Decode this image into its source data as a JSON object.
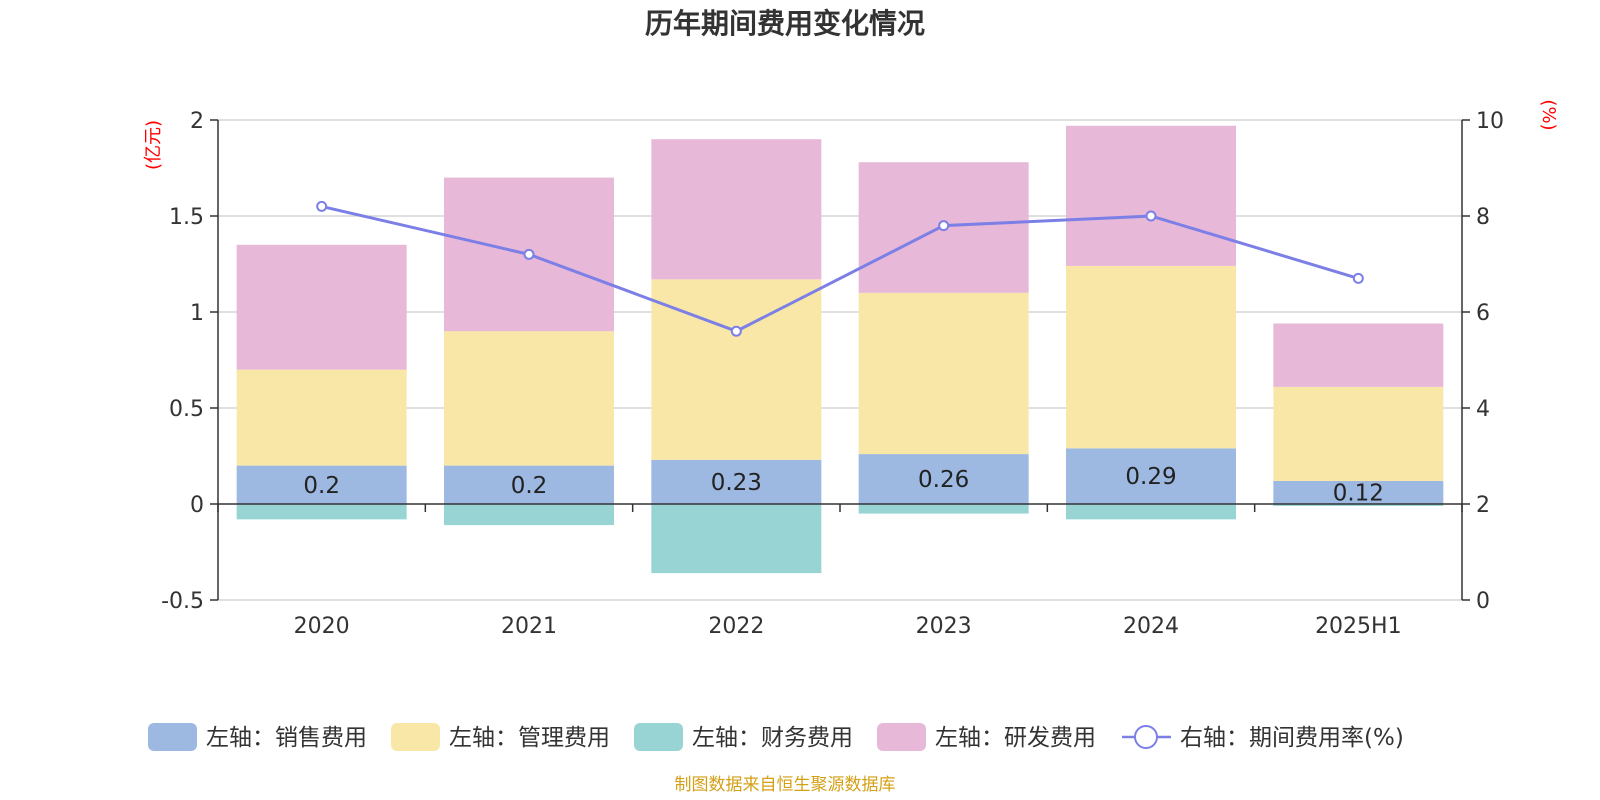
{
  "chart_data": {
    "type": "bar",
    "title": "历年期间费用变化情况",
    "categories": [
      "2020",
      "2021",
      "2022",
      "2023",
      "2024",
      "2025H1"
    ],
    "left_axis": {
      "unit": "(亿元)",
      "ylim": [
        -0.5,
        2
      ],
      "ticks": [
        -0.5,
        0,
        0.5,
        1,
        1.5,
        2
      ],
      "tick_labels": [
        "-0.5",
        "0",
        "0.5",
        "1",
        "1.5",
        "2"
      ]
    },
    "right_axis": {
      "unit": "(%)",
      "ylim": [
        0,
        10
      ],
      "ticks": [
        0,
        2,
        4,
        6,
        8,
        10
      ],
      "tick_labels": [
        "0",
        "2",
        "4",
        "6",
        "8",
        "10"
      ]
    },
    "series": [
      {
        "name": "左轴：销售费用",
        "kind": "bar",
        "axis": "left",
        "color": "#9db9e2",
        "values": [
          0.2,
          0.2,
          0.23,
          0.26,
          0.29,
          0.12
        ],
        "labels": [
          "0.2",
          "0.2",
          "0.23",
          "0.26",
          "0.29",
          "0.12"
        ]
      },
      {
        "name": "左轴：管理费用",
        "kind": "bar",
        "axis": "left",
        "color": "#f9e7a7",
        "values": [
          0.5,
          0.7,
          0.94,
          0.84,
          0.95,
          0.49
        ]
      },
      {
        "name": "左轴：财务费用",
        "kind": "bar",
        "axis": "left",
        "color": "#98d4d4",
        "values": [
          -0.08,
          -0.11,
          -0.36,
          -0.05,
          -0.08,
          -0.01
        ]
      },
      {
        "name": "左轴：研发费用",
        "kind": "bar",
        "axis": "left",
        "color": "#e7b8d8",
        "values": [
          0.65,
          0.8,
          0.73,
          0.68,
          0.73,
          0.33
        ]
      },
      {
        "name": "右轴：期间费用率(%)",
        "kind": "line",
        "axis": "right",
        "color": "#7b7fe6",
        "values": [
          8.2,
          7.2,
          5.6,
          7.8,
          8.0,
          6.7
        ]
      }
    ],
    "grid": true,
    "legend": "bottom",
    "source": "制图数据来自恒生聚源数据库"
  }
}
